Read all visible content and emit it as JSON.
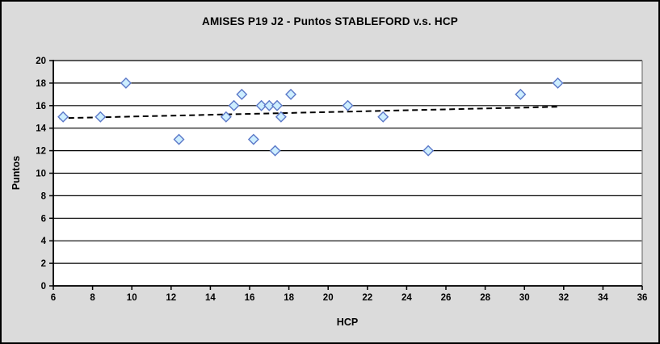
{
  "window": {
    "background_color": "#dbdbdb",
    "border_color": "#000000",
    "plot_background_color": "#ffffff",
    "plot_border_color": "#8c8c8c"
  },
  "chart_data": {
    "type": "scatter",
    "title": "AMISES P19 J2 - Puntos STABLEFORD v.s. HCP",
    "xlabel": "HCP",
    "ylabel": "Puntos",
    "xlim": [
      6,
      36
    ],
    "ylim": [
      0,
      20
    ],
    "x_ticks": [
      6,
      8,
      10,
      12,
      14,
      16,
      18,
      20,
      22,
      24,
      26,
      28,
      30,
      32,
      34,
      36
    ],
    "y_ticks": [
      0,
      2,
      4,
      6,
      8,
      10,
      12,
      14,
      16,
      18,
      20
    ],
    "grid": "horizontal",
    "gridline_color": "#000000",
    "legend": "none",
    "marker": {
      "shape": "diamond",
      "fill": "#cdeeff",
      "stroke": "#5b78c8"
    },
    "series": [
      {
        "name": "Puntos STABLEFORD",
        "points": [
          {
            "x": 6.5,
            "y": 15
          },
          {
            "x": 8.4,
            "y": 15
          },
          {
            "x": 9.7,
            "y": 18
          },
          {
            "x": 12.4,
            "y": 13
          },
          {
            "x": 14.8,
            "y": 15
          },
          {
            "x": 15.2,
            "y": 16
          },
          {
            "x": 15.6,
            "y": 17
          },
          {
            "x": 16.2,
            "y": 13
          },
          {
            "x": 16.6,
            "y": 16
          },
          {
            "x": 17.0,
            "y": 16
          },
          {
            "x": 17.3,
            "y": 12
          },
          {
            "x": 17.4,
            "y": 16
          },
          {
            "x": 17.6,
            "y": 15
          },
          {
            "x": 18.1,
            "y": 17
          },
          {
            "x": 21.0,
            "y": 16
          },
          {
            "x": 22.8,
            "y": 15
          },
          {
            "x": 25.1,
            "y": 12
          },
          {
            "x": 29.8,
            "y": 17
          },
          {
            "x": 31.7,
            "y": 18
          }
        ]
      }
    ],
    "trendline": {
      "style": "dashed",
      "color": "#000000",
      "x1": 6.3,
      "y1": 14.88,
      "x2": 31.8,
      "y2": 15.9
    }
  }
}
